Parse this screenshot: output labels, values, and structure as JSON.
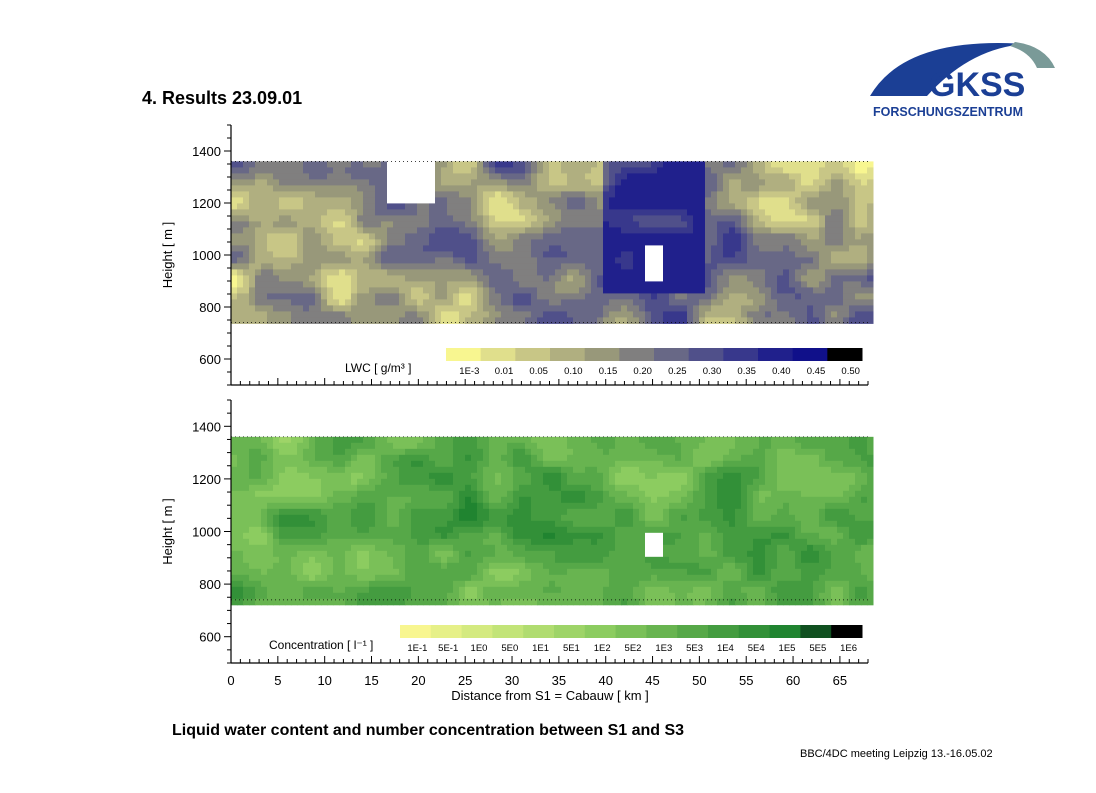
{
  "slide": {
    "title": "4. Results  23.09.01",
    "caption": "Liquid water content and number concentration between S1 and S3",
    "footer": "BBC/4DC meeting Leipzig 13.-16.05.02"
  },
  "logo": {
    "name": "GKSS",
    "subtitle": "FORSCHUNGSZENTRUM",
    "colors": {
      "blue": "#1b3f95",
      "gray": "#7a9a98"
    }
  },
  "chart_data": [
    {
      "type": "heatmap",
      "panel": "lwc",
      "title": "",
      "xlabel": "",
      "ylabel": "Height [ m ]",
      "xlim": [
        0,
        68
      ],
      "ylim": [
        500,
        1500
      ],
      "y_ticks": [
        600,
        800,
        1000,
        1200,
        1400
      ],
      "grid": false,
      "colorbar_label": "LWC [ g/m³ ]",
      "colorbar_levels": [
        "1E-3",
        "0.01",
        "0.05",
        "0.10",
        "0.15",
        "0.20",
        "0.25",
        "0.30",
        "0.35",
        "0.40",
        "0.45",
        "0.50"
      ],
      "colorbar_colors": [
        "#f8f690",
        "#e0df8c",
        "#c8c686",
        "#b0af80",
        "#98987a",
        "#807f7f",
        "#686886",
        "#50508a",
        "#38388c",
        "#20208c",
        "#10108a",
        "#000000"
      ],
      "cloud_base": 740,
      "cloud_top": 1360
    },
    {
      "type": "heatmap",
      "panel": "concentration",
      "title": "",
      "xlabel": "Distance from S1 = Cabauw [ km ]",
      "ylabel": "Height [ m ]",
      "xlim": [
        0,
        68
      ],
      "ylim": [
        500,
        1500
      ],
      "x_ticks": [
        0,
        5,
        10,
        15,
        20,
        25,
        30,
        35,
        40,
        45,
        50,
        55,
        60,
        65
      ],
      "y_ticks": [
        600,
        800,
        1000,
        1200,
        1400
      ],
      "grid": false,
      "colorbar_label": "Concentration [ l⁻¹ ]",
      "colorbar_levels": [
        "1E-1",
        "5E-1",
        "1E0",
        "5E0",
        "1E1",
        "5E1",
        "1E2",
        "5E2",
        "1E3",
        "5E3",
        "1E4",
        "5E4",
        "1E5",
        "5E5",
        "1E6"
      ],
      "colorbar_colors": [
        "#f8f690",
        "#e6f088",
        "#d4ea80",
        "#c2e478",
        "#b0dc70",
        "#9ed468",
        "#8ccc60",
        "#7ac058",
        "#68b450",
        "#56a848",
        "#449c40",
        "#329038",
        "#208430",
        "#105020",
        "#000000"
      ],
      "cloud_base": 740,
      "cloud_top": 1360
    }
  ]
}
